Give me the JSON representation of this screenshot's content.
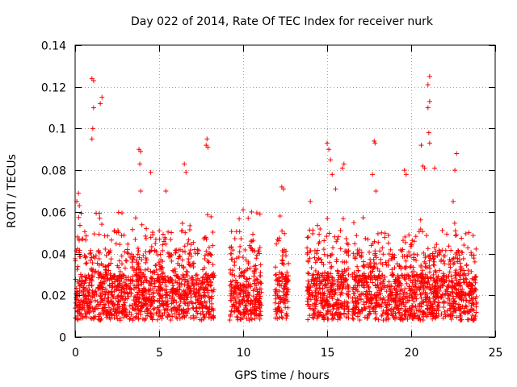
{
  "chart_data": {
    "type": "scatter",
    "title": "Day 022 of 2014, Rate Of TEC Index for receiver nurk",
    "xlabel": "GPS time / hours",
    "ylabel": "ROTI / TECUs",
    "xlim": [
      0,
      25
    ],
    "ylim": [
      0,
      0.14
    ],
    "x_ticks": [
      "0",
      "5",
      "10",
      "15",
      "20",
      "25"
    ],
    "y_ticks": [
      "0",
      "0.02",
      "0.04",
      "0.06",
      "0.08",
      "0.1",
      "0.12",
      "0.14"
    ],
    "x_tick_values": [
      0,
      5,
      10,
      15,
      20,
      25
    ],
    "y_tick_values": [
      0,
      0.02,
      0.04,
      0.06,
      0.08,
      0.1,
      0.12,
      0.14
    ],
    "grid": true,
    "marker": "+",
    "color": "#ff0000",
    "series": [
      {
        "name": "ROTI",
        "note": "dense scatter; data present in ~0–8.3 h, 9.2–11.1 h, 11.9–12.7 h, 13.8–16.3 h, 16.5–23.9 h",
        "points": [
          [
            1.0,
            0.124
          ],
          [
            1.1,
            0.123
          ],
          [
            1.5,
            0.112
          ],
          [
            1.6,
            0.115
          ],
          [
            1.1,
            0.11
          ],
          [
            1.05,
            0.1
          ],
          [
            1.0,
            0.095
          ],
          [
            3.8,
            0.09
          ],
          [
            3.9,
            0.089
          ],
          [
            3.85,
            0.083
          ],
          [
            4.5,
            0.079
          ],
          [
            3.9,
            0.07
          ],
          [
            5.4,
            0.07
          ],
          [
            7.8,
            0.092
          ],
          [
            7.9,
            0.091
          ],
          [
            7.85,
            0.095
          ],
          [
            6.5,
            0.083
          ],
          [
            6.6,
            0.079
          ],
          [
            0.2,
            0.069
          ],
          [
            0.25,
            0.063
          ],
          [
            0.1,
            0.065
          ],
          [
            10.0,
            0.061
          ],
          [
            10.5,
            0.06
          ],
          [
            11.0,
            0.059
          ],
          [
            10.3,
            0.057
          ],
          [
            12.3,
            0.072
          ],
          [
            12.4,
            0.071
          ],
          [
            12.2,
            0.058
          ],
          [
            14.0,
            0.065
          ],
          [
            15.0,
            0.093
          ],
          [
            15.1,
            0.09
          ],
          [
            15.2,
            0.085
          ],
          [
            16.0,
            0.083
          ],
          [
            15.9,
            0.081
          ],
          [
            15.3,
            0.078
          ],
          [
            15.5,
            0.071
          ],
          [
            17.8,
            0.094
          ],
          [
            17.85,
            0.093
          ],
          [
            17.7,
            0.078
          ],
          [
            17.9,
            0.07
          ],
          [
            19.6,
            0.08
          ],
          [
            19.7,
            0.078
          ],
          [
            21.1,
            0.125
          ],
          [
            21.0,
            0.121
          ],
          [
            21.1,
            0.113
          ],
          [
            21.0,
            0.11
          ],
          [
            21.05,
            0.098
          ],
          [
            21.1,
            0.093
          ],
          [
            20.6,
            0.092
          ],
          [
            20.7,
            0.082
          ],
          [
            20.8,
            0.081
          ],
          [
            21.4,
            0.081
          ],
          [
            22.7,
            0.088
          ],
          [
            22.6,
            0.08
          ],
          [
            22.5,
            0.065
          ]
        ]
      }
    ]
  }
}
